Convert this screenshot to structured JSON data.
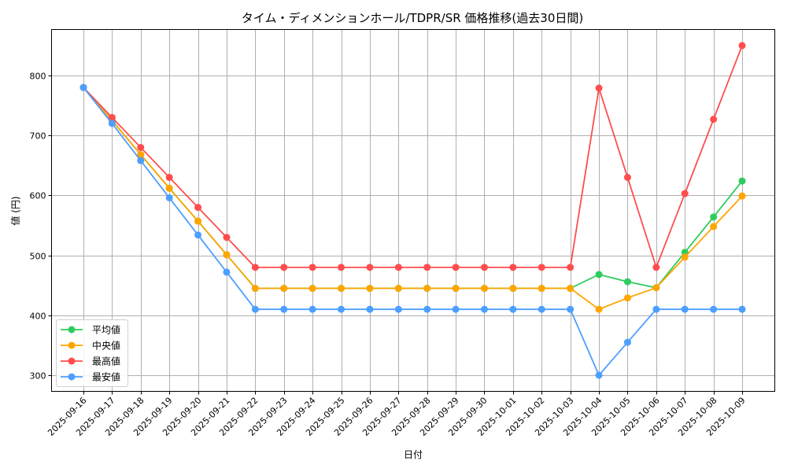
{
  "chart_data": {
    "type": "line",
    "title": "タイム・ディメンションホール/TDPR/SR 価格推移(過去30日間)",
    "xlabel": "日付",
    "ylabel": "値 (円)",
    "ylim": [
      272,
      877
    ],
    "yticks": [
      300,
      400,
      500,
      600,
      700,
      800
    ],
    "grid": true,
    "legend_position": "lower left",
    "x": [
      "2025-09-16",
      "2025-09-17",
      "2025-09-18",
      "2025-09-19",
      "2025-09-20",
      "2025-09-21",
      "2025-09-22",
      "2025-09-23",
      "2025-09-24",
      "2025-09-25",
      "2025-09-26",
      "2025-09-27",
      "2025-09-28",
      "2025-09-29",
      "2025-09-30",
      "2025-10-01",
      "2025-10-02",
      "2025-10-03",
      "2025-10-04",
      "2025-10-05",
      "2025-10-06",
      "2025-10-07",
      "2025-10-08",
      "2025-10-09"
    ],
    "series": [
      {
        "name": "平均値",
        "color": "#2ecc5e",
        "values": [
          780,
          725,
          668,
          612,
          557,
          501,
          445,
          445,
          445,
          445,
          445,
          445,
          445,
          445,
          445,
          445,
          445,
          445,
          468,
          456,
          446,
          505,
          564,
          624
        ]
      },
      {
        "name": "中央値",
        "color": "#ffa500",
        "values": [
          780,
          725,
          668,
          612,
          557,
          501,
          445,
          445,
          445,
          445,
          445,
          445,
          445,
          445,
          445,
          445,
          445,
          445,
          410,
          429,
          446,
          497,
          548,
          599
        ]
      },
      {
        "name": "最高値",
        "color": "#ff4d4d",
        "values": [
          780,
          730,
          680,
          630,
          580,
          530,
          480,
          480,
          480,
          480,
          480,
          480,
          480,
          480,
          480,
          480,
          480,
          480,
          779,
          630,
          480,
          603,
          727,
          850
        ]
      },
      {
        "name": "最安値",
        "color": "#4d9fff",
        "values": [
          780,
          720,
          658,
          596,
          534,
          472,
          410,
          410,
          410,
          410,
          410,
          410,
          410,
          410,
          410,
          410,
          410,
          410,
          300,
          355,
          410,
          410,
          410,
          410
        ]
      }
    ]
  }
}
